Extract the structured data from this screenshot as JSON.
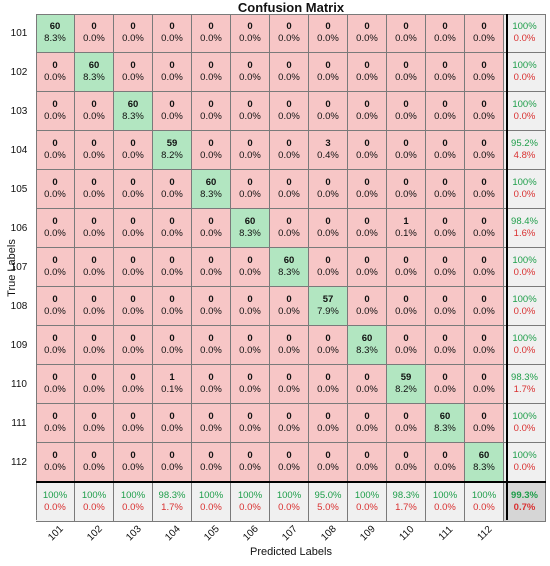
{
  "chart_data": {
    "type": "heatmap",
    "title": "Confusion Matrix",
    "xlabel": "Predicted Labels",
    "ylabel": "True Labels",
    "classes": [
      "101",
      "102",
      "103",
      "104",
      "105",
      "106",
      "107",
      "108",
      "109",
      "110",
      "111",
      "112"
    ],
    "counts": [
      [
        60,
        0,
        0,
        0,
        0,
        0,
        0,
        0,
        0,
        0,
        0,
        0
      ],
      [
        0,
        60,
        0,
        0,
        0,
        0,
        0,
        0,
        0,
        0,
        0,
        0
      ],
      [
        0,
        0,
        60,
        0,
        0,
        0,
        0,
        0,
        0,
        0,
        0,
        0
      ],
      [
        0,
        0,
        0,
        59,
        0,
        0,
        0,
        3,
        0,
        0,
        0,
        0
      ],
      [
        0,
        0,
        0,
        0,
        60,
        0,
        0,
        0,
        0,
        0,
        0,
        0
      ],
      [
        0,
        0,
        0,
        0,
        0,
        60,
        0,
        0,
        0,
        1,
        0,
        0
      ],
      [
        0,
        0,
        0,
        0,
        0,
        0,
        60,
        0,
        0,
        0,
        0,
        0
      ],
      [
        0,
        0,
        0,
        0,
        0,
        0,
        0,
        57,
        0,
        0,
        0,
        0
      ],
      [
        0,
        0,
        0,
        0,
        0,
        0,
        0,
        0,
        60,
        0,
        0,
        0
      ],
      [
        0,
        0,
        0,
        1,
        0,
        0,
        0,
        0,
        0,
        59,
        0,
        0
      ],
      [
        0,
        0,
        0,
        0,
        0,
        0,
        0,
        0,
        0,
        0,
        60,
        0
      ],
      [
        0,
        0,
        0,
        0,
        0,
        0,
        0,
        0,
        0,
        0,
        0,
        60
      ]
    ],
    "percents": [
      [
        "8.3%",
        "0.0%",
        "0.0%",
        "0.0%",
        "0.0%",
        "0.0%",
        "0.0%",
        "0.0%",
        "0.0%",
        "0.0%",
        "0.0%",
        "0.0%"
      ],
      [
        "0.0%",
        "8.3%",
        "0.0%",
        "0.0%",
        "0.0%",
        "0.0%",
        "0.0%",
        "0.0%",
        "0.0%",
        "0.0%",
        "0.0%",
        "0.0%"
      ],
      [
        "0.0%",
        "0.0%",
        "8.3%",
        "0.0%",
        "0.0%",
        "0.0%",
        "0.0%",
        "0.0%",
        "0.0%",
        "0.0%",
        "0.0%",
        "0.0%"
      ],
      [
        "0.0%",
        "0.0%",
        "0.0%",
        "8.2%",
        "0.0%",
        "0.0%",
        "0.0%",
        "0.4%",
        "0.0%",
        "0.0%",
        "0.0%",
        "0.0%"
      ],
      [
        "0.0%",
        "0.0%",
        "0.0%",
        "0.0%",
        "8.3%",
        "0.0%",
        "0.0%",
        "0.0%",
        "0.0%",
        "0.0%",
        "0.0%",
        "0.0%"
      ],
      [
        "0.0%",
        "0.0%",
        "0.0%",
        "0.0%",
        "0.0%",
        "8.3%",
        "0.0%",
        "0.0%",
        "0.0%",
        "0.1%",
        "0.0%",
        "0.0%"
      ],
      [
        "0.0%",
        "0.0%",
        "0.0%",
        "0.0%",
        "0.0%",
        "0.0%",
        "8.3%",
        "0.0%",
        "0.0%",
        "0.0%",
        "0.0%",
        "0.0%"
      ],
      [
        "0.0%",
        "0.0%",
        "0.0%",
        "0.0%",
        "0.0%",
        "0.0%",
        "0.0%",
        "7.9%",
        "0.0%",
        "0.0%",
        "0.0%",
        "0.0%"
      ],
      [
        "0.0%",
        "0.0%",
        "0.0%",
        "0.0%",
        "0.0%",
        "0.0%",
        "0.0%",
        "0.0%",
        "8.3%",
        "0.0%",
        "0.0%",
        "0.0%"
      ],
      [
        "0.0%",
        "0.0%",
        "0.0%",
        "0.1%",
        "0.0%",
        "0.0%",
        "0.0%",
        "0.0%",
        "0.0%",
        "8.2%",
        "0.0%",
        "0.0%"
      ],
      [
        "0.0%",
        "0.0%",
        "0.0%",
        "0.0%",
        "0.0%",
        "0.0%",
        "0.0%",
        "0.0%",
        "0.0%",
        "0.0%",
        "8.3%",
        "0.0%"
      ],
      [
        "0.0%",
        "0.0%",
        "0.0%",
        "0.0%",
        "0.0%",
        "0.0%",
        "0.0%",
        "0.0%",
        "0.0%",
        "0.0%",
        "0.0%",
        "8.3%"
      ]
    ],
    "row_summary": [
      [
        "100%",
        "0.0%"
      ],
      [
        "100%",
        "0.0%"
      ],
      [
        "100%",
        "0.0%"
      ],
      [
        "95.2%",
        "4.8%"
      ],
      [
        "100%",
        "0.0%"
      ],
      [
        "98.4%",
        "1.6%"
      ],
      [
        "100%",
        "0.0%"
      ],
      [
        "100%",
        "0.0%"
      ],
      [
        "100%",
        "0.0%"
      ],
      [
        "98.3%",
        "1.7%"
      ],
      [
        "100%",
        "0.0%"
      ],
      [
        "100%",
        "0.0%"
      ]
    ],
    "col_summary": [
      [
        "100%",
        "0.0%"
      ],
      [
        "100%",
        "0.0%"
      ],
      [
        "100%",
        "0.0%"
      ],
      [
        "98.3%",
        "1.7%"
      ],
      [
        "100%",
        "0.0%"
      ],
      [
        "100%",
        "0.0%"
      ],
      [
        "100%",
        "0.0%"
      ],
      [
        "95.0%",
        "5.0%"
      ],
      [
        "100%",
        "0.0%"
      ],
      [
        "98.3%",
        "1.7%"
      ],
      [
        "100%",
        "0.0%"
      ],
      [
        "100%",
        "0.0%"
      ]
    ],
    "overall": [
      "99.3%",
      "0.7%"
    ],
    "colors": {
      "diagonal": "#b2e6c1",
      "off_diagonal": "#f7c6c6",
      "summary": "#f0f0f0",
      "overall": "#d6d6d6",
      "good_text": "#1e9e4a",
      "bad_text": "#d93030"
    }
  }
}
